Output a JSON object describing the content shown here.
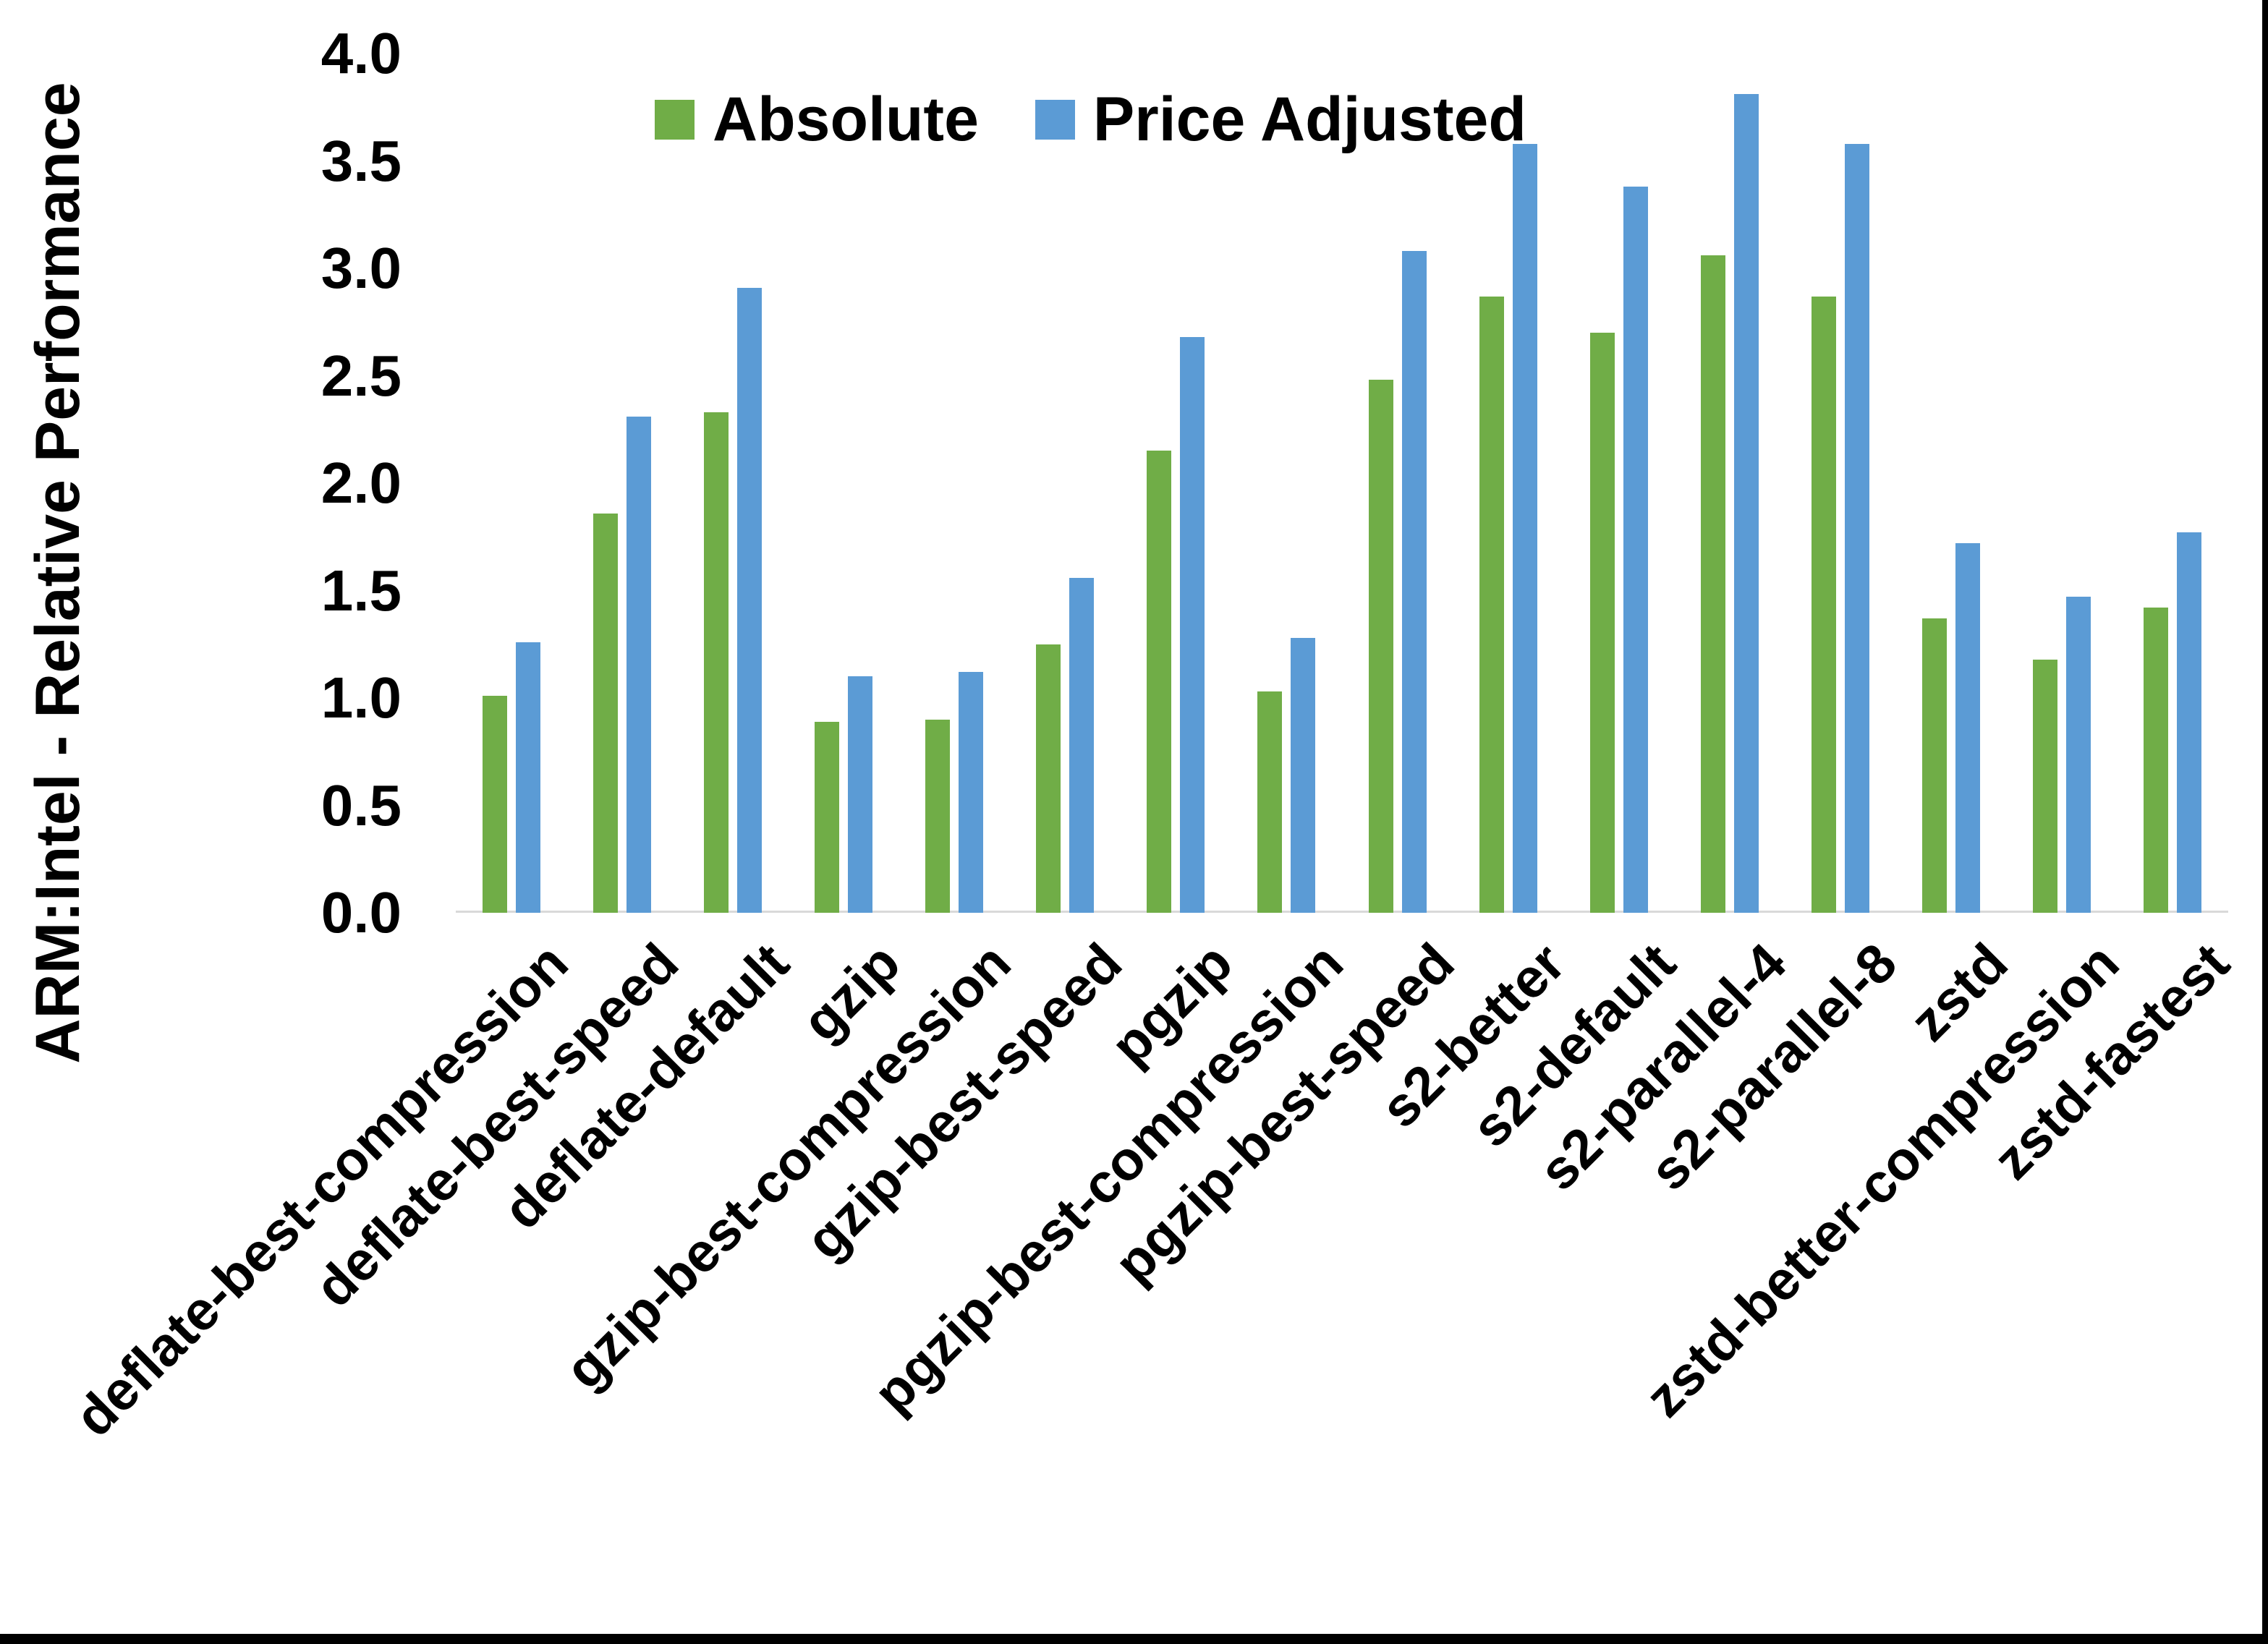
{
  "chart_data": {
    "type": "bar",
    "title": "",
    "xlabel": "",
    "ylabel": "ARM:Intel - Relative Performance",
    "ylim": [
      0.0,
      4.0
    ],
    "yticks": [
      "4.0",
      "3.5",
      "3.0",
      "2.5",
      "2.0",
      "1.5",
      "1.0",
      "0.5",
      "0.0"
    ],
    "grid": false,
    "legend_position": "top-center",
    "categories": [
      "deflate-best-compression",
      "deflate-best-speed",
      "deflate-default",
      "gzip",
      "gzip-best-compression",
      "gzip-best-speed",
      "pgzip",
      "pgzip-best-compression",
      "pgzip-best-speed",
      "s2-better",
      "s2-default",
      "s2-parallel-4",
      "s2-parallel-8",
      "zstd",
      "zstd-better-compression",
      "zstd-fastest"
    ],
    "series": [
      {
        "name": "Absolute",
        "color": "#70AD47",
        "values": [
          1.01,
          1.86,
          2.33,
          0.89,
          0.9,
          1.25,
          2.15,
          1.03,
          2.48,
          2.87,
          2.7,
          3.06,
          2.87,
          1.37,
          1.18,
          1.42
        ]
      },
      {
        "name": "Price Adjusted",
        "color": "#5B9BD5",
        "values": [
          1.26,
          2.31,
          2.91,
          1.1,
          1.12,
          1.56,
          2.68,
          1.28,
          3.08,
          3.58,
          3.38,
          3.81,
          3.58,
          1.72,
          1.47,
          1.77
        ]
      }
    ]
  },
  "colors": {
    "axis_line": "#D9D9D9",
    "text": "#000000",
    "frame": "#000000",
    "background": "#FFFFFF"
  }
}
